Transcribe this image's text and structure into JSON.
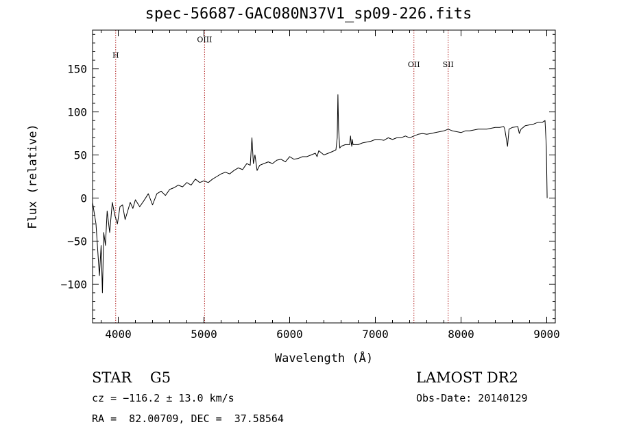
{
  "chart_data": {
    "type": "line",
    "title": "spec-56687-GAC080N37V1_sp09-226.fits",
    "xlabel": "Wavelength (Å)",
    "ylabel": "Flux (relative)",
    "xlim": [
      3700,
      9100
    ],
    "ylim": [
      -145,
      195
    ],
    "xticks": [
      4000,
      5000,
      6000,
      7000,
      8000,
      9000
    ],
    "yticks": [
      -100,
      -50,
      0,
      50,
      100,
      150
    ],
    "ytick_labels": [
      "−100",
      "−50",
      "0",
      "50",
      "100",
      "150"
    ],
    "lines": [
      {
        "label": "H",
        "x": 3970,
        "label_y": 163
      },
      {
        "label": "OIII",
        "x": 5007,
        "label_y": 181
      },
      {
        "label": "OII",
        "x": 7450,
        "label_y": 152
      },
      {
        "label": "SII",
        "x": 7850,
        "label_y": 152
      }
    ],
    "series": [
      {
        "x": [
          3700,
          3740,
          3780,
          3800,
          3815,
          3830,
          3850,
          3870,
          3900,
          3930,
          3960,
          3990,
          4020,
          4050,
          4080,
          4110,
          4140,
          4170,
          4200,
          4250,
          4300,
          4350,
          4400,
          4450,
          4500,
          4550,
          4600,
          4650,
          4700,
          4750,
          4800,
          4850,
          4900,
          4950,
          5000,
          5050,
          5100,
          5150,
          5200,
          5250,
          5300,
          5350,
          5400,
          5450,
          5500,
          5540,
          5560,
          5577,
          5595,
          5620,
          5650,
          5700,
          5750,
          5800,
          5850,
          5900,
          5950,
          6000,
          6050,
          6100,
          6150,
          6200,
          6250,
          6300,
          6320,
          6340,
          6400,
          6450,
          6500,
          6540,
          6555,
          6563,
          6571,
          6585,
          6600,
          6650,
          6700,
          6710,
          6717,
          6725,
          6731,
          6740,
          6800,
          6850,
          6900,
          6950,
          7000,
          7050,
          7100,
          7150,
          7200,
          7250,
          7300,
          7350,
          7400,
          7450,
          7500,
          7550,
          7600,
          7650,
          7700,
          7750,
          7800,
          7850,
          7900,
          7950,
          8000,
          8050,
          8100,
          8150,
          8200,
          8250,
          8300,
          8350,
          8400,
          8450,
          8498,
          8510,
          8542,
          8560,
          8600,
          8662,
          8680,
          8700,
          8750,
          8800,
          8850,
          8900,
          8950,
          8980,
          8995,
          9005
        ],
        "y": [
          -5,
          -30,
          -90,
          -55,
          -110,
          -40,
          -55,
          -15,
          -40,
          -5,
          -20,
          -30,
          -10,
          -8,
          -25,
          -15,
          -5,
          -12,
          -2,
          -10,
          -3,
          5,
          -8,
          5,
          8,
          3,
          10,
          12,
          15,
          13,
          18,
          15,
          22,
          18,
          20,
          18,
          22,
          25,
          28,
          30,
          28,
          32,
          35,
          33,
          40,
          38,
          70,
          40,
          50,
          32,
          38,
          40,
          42,
          40,
          44,
          45,
          42,
          48,
          45,
          46,
          48,
          48,
          50,
          52,
          48,
          55,
          50,
          52,
          54,
          56,
          70,
          120,
          80,
          58,
          60,
          62,
          62,
          72,
          65,
          60,
          68,
          62,
          62,
          64,
          65,
          66,
          68,
          68,
          67,
          70,
          68,
          70,
          70,
          72,
          70,
          72,
          74,
          75,
          74,
          75,
          76,
          77,
          78,
          80,
          78,
          77,
          76,
          78,
          78,
          79,
          80,
          80,
          80,
          81,
          82,
          82,
          83,
          80,
          60,
          80,
          82,
          83,
          75,
          80,
          84,
          85,
          86,
          88,
          88,
          90,
          60,
          0
        ]
      }
    ],
    "footer": {
      "object": "STAR    G5",
      "cz": "cz = −116.2 ± 13.0 km/s",
      "radec": "RA =  82.00709, DEC =  37.58564",
      "survey": "LAMOST DR2",
      "obsdate": "Obs-Date: 20140129"
    }
  }
}
